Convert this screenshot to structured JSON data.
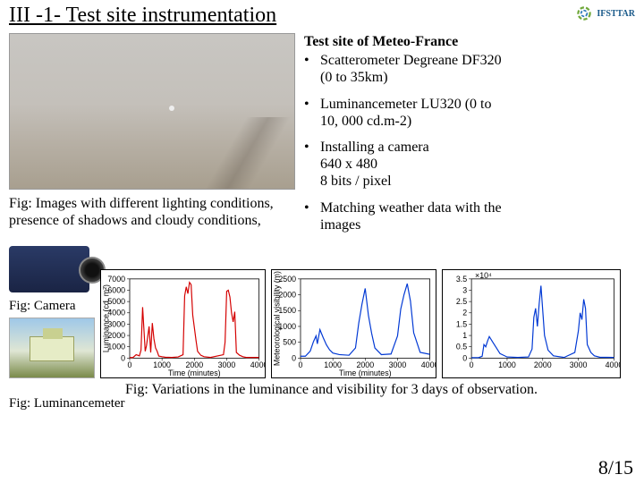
{
  "header": {
    "title": "III -1- Test site instrumentation",
    "logo_text": "IFSTTAR"
  },
  "fog_caption_l1": "Fig: Images with different lighting conditions,",
  "fog_caption_l2": "presence of shadows and cloudy conditions,",
  "bullets": {
    "title": "Test site of Meteo-France",
    "b1_l1": "Scatterometer Degreane DF320",
    "b1_l2": "(0 to 35km)",
    "b2_l1": "Luminancemeter LU320 (0 to",
    "b2_l2": "10, 000 cd.m-2)",
    "b3_l1": "Installing a camera",
    "b3_l2": "640 x 480",
    "b3_l3": "8 bits / pixel",
    "b4_l1": "Matching weather data with the",
    "b4_l2": "images"
  },
  "fig_camera": "Fig: Camera",
  "fig_luminance": "Fig: Luminancemeter",
  "bottom_caption": "Fig: Variations in the luminance and visibility for 3 days of observation.",
  "page": "8/15",
  "chart_luminance": {
    "type": "line",
    "xlim": [
      0,
      4000
    ],
    "ylim": [
      0,
      7000
    ],
    "xtick_step": 1000,
    "ytick_step": 1000,
    "xlabel": "Time (minutes)",
    "ylabel": "Luminance (cd. m²)",
    "line_color": "#d40000",
    "line_width": 1.2,
    "background_color": "#ffffff",
    "grid": false,
    "x": [
      0,
      100,
      200,
      300,
      350,
      400,
      480,
      520,
      600,
      650,
      700,
      750,
      800,
      850,
      900,
      1000,
      1100,
      1300,
      1500,
      1650,
      1700,
      1750,
      1800,
      1850,
      1900,
      1950,
      2050,
      2100,
      2200,
      2300,
      2500,
      2900,
      2950,
      3000,
      3050,
      3100,
      3150,
      3200,
      3250,
      3300,
      3400,
      3500,
      3600,
      4000
    ],
    "y": [
      50,
      50,
      300,
      200,
      700,
      4500,
      600,
      1100,
      2800,
      500,
      3100,
      1700,
      900,
      600,
      180,
      120,
      80,
      60,
      100,
      300,
      5500,
      6300,
      5700,
      6700,
      6500,
      3800,
      1600,
      600,
      250,
      120,
      60,
      300,
      1400,
      5900,
      6000,
      5400,
      4000,
      3200,
      4100,
      500,
      250,
      120,
      60,
      60
    ]
  },
  "chart_visibility": {
    "type": "line",
    "xlim": [
      0,
      4000
    ],
    "ylim": [
      0,
      2500
    ],
    "xtick_step": 1000,
    "ytick_step": 500,
    "xlabel": "Time (minutes)",
    "ylabel": "Meteorological visibility (m)",
    "line_color": "#0038d4",
    "line_width": 1.2,
    "background_color": "#ffffff",
    "grid": false,
    "x": [
      0,
      150,
      300,
      400,
      480,
      520,
      600,
      700,
      800,
      900,
      1000,
      1200,
      1500,
      1700,
      1800,
      1900,
      2000,
      2100,
      2200,
      2300,
      2500,
      2800,
      3000,
      3100,
      3200,
      3300,
      3400,
      3500,
      3700,
      4000
    ],
    "y": [
      60,
      60,
      220,
      520,
      700,
      450,
      900,
      650,
      420,
      260,
      160,
      110,
      90,
      320,
      1100,
      1700,
      2200,
      1350,
      780,
      320,
      110,
      130,
      700,
      1550,
      2000,
      2350,
      1800,
      800,
      180,
      120
    ]
  },
  "chart_third": {
    "type": "line",
    "xlim": [
      0,
      4000
    ],
    "ylim": [
      0,
      3.5
    ],
    "ylabel_exp": "×10⁴",
    "xtick_step": 1000,
    "ytick_step": 0.5,
    "line_color": "#0038d4",
    "line_width": 1.2,
    "background_color": "#ffffff",
    "grid": false,
    "x": [
      0,
      200,
      300,
      350,
      400,
      450,
      500,
      600,
      700,
      800,
      1000,
      1300,
      1600,
      1700,
      1750,
      1800,
      1850,
      1900,
      1950,
      2050,
      2150,
      2300,
      2600,
      2900,
      3000,
      3050,
      3100,
      3150,
      3200,
      3250,
      3350,
      3450,
      3600,
      4000
    ],
    "y": [
      0.02,
      0.02,
      0.08,
      0.6,
      0.5,
      0.75,
      0.95,
      0.7,
      0.45,
      0.2,
      0.05,
      0.03,
      0.05,
      0.4,
      1.8,
      2.2,
      1.4,
      2.4,
      3.2,
      1.0,
      0.35,
      0.1,
      0.03,
      0.25,
      1.2,
      2.0,
      1.7,
      2.6,
      2.2,
      0.6,
      0.25,
      0.1,
      0.04,
      0.03
    ]
  }
}
